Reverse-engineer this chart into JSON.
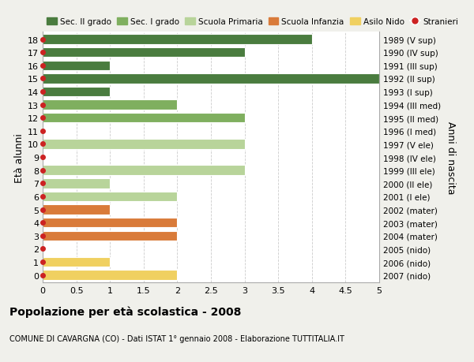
{
  "ages": [
    18,
    17,
    16,
    15,
    14,
    13,
    12,
    11,
    10,
    9,
    8,
    7,
    6,
    5,
    4,
    3,
    2,
    1,
    0
  ],
  "right_labels": [
    "1989 (V sup)",
    "1990 (IV sup)",
    "1991 (III sup)",
    "1992 (II sup)",
    "1993 (I sup)",
    "1994 (III med)",
    "1995 (II med)",
    "1996 (I med)",
    "1997 (V ele)",
    "1998 (IV ele)",
    "1999 (III ele)",
    "2000 (II ele)",
    "2001 (I ele)",
    "2002 (mater)",
    "2003 (mater)",
    "2004 (mater)",
    "2005 (nido)",
    "2006 (nido)",
    "2007 (nido)"
  ],
  "bar_values": [
    4,
    3,
    1,
    5,
    1,
    2,
    3,
    0,
    3,
    0,
    3,
    1,
    2,
    1,
    2,
    2,
    0,
    1,
    2
  ],
  "bar_colors": [
    "#4a7c3f",
    "#4a7c3f",
    "#4a7c3f",
    "#4a7c3f",
    "#4a7c3f",
    "#7faf5f",
    "#7faf5f",
    "#7faf5f",
    "#b8d49a",
    "#b8d49a",
    "#b8d49a",
    "#b8d49a",
    "#b8d49a",
    "#d97b3a",
    "#d97b3a",
    "#d97b3a",
    "#f0d060",
    "#f0d060",
    "#f0d060"
  ],
  "legend_items": [
    {
      "label": "Sec. II grado",
      "color": "#4a7c3f"
    },
    {
      "label": "Sec. I grado",
      "color": "#7faf5f"
    },
    {
      "label": "Scuola Primaria",
      "color": "#b8d49a"
    },
    {
      "label": "Scuola Infanzia",
      "color": "#d97b3a"
    },
    {
      "label": "Asilo Nido",
      "color": "#f0d060"
    },
    {
      "label": "Stranieri",
      "color": "#cc2222"
    }
  ],
  "ylabel_left": "Età alunni",
  "ylabel_right": "Anni di nascita",
  "xlim": [
    0,
    5.0
  ],
  "xticks": [
    0,
    0.5,
    1.0,
    1.5,
    2.0,
    2.5,
    3.0,
    3.5,
    4.0,
    4.5,
    5.0
  ],
  "title": "Popolazione per età scolastica - 2008",
  "subtitle": "COMUNE DI CAVARGNA (CO) - Dati ISTAT 1° gennaio 2008 - Elaborazione TUTTITALIA.IT",
  "bg_color": "#f0f0eb",
  "plot_bg_color": "#ffffff",
  "grid_color": "#cccccc",
  "stranieri_color": "#cc2222",
  "bar_height": 0.75
}
